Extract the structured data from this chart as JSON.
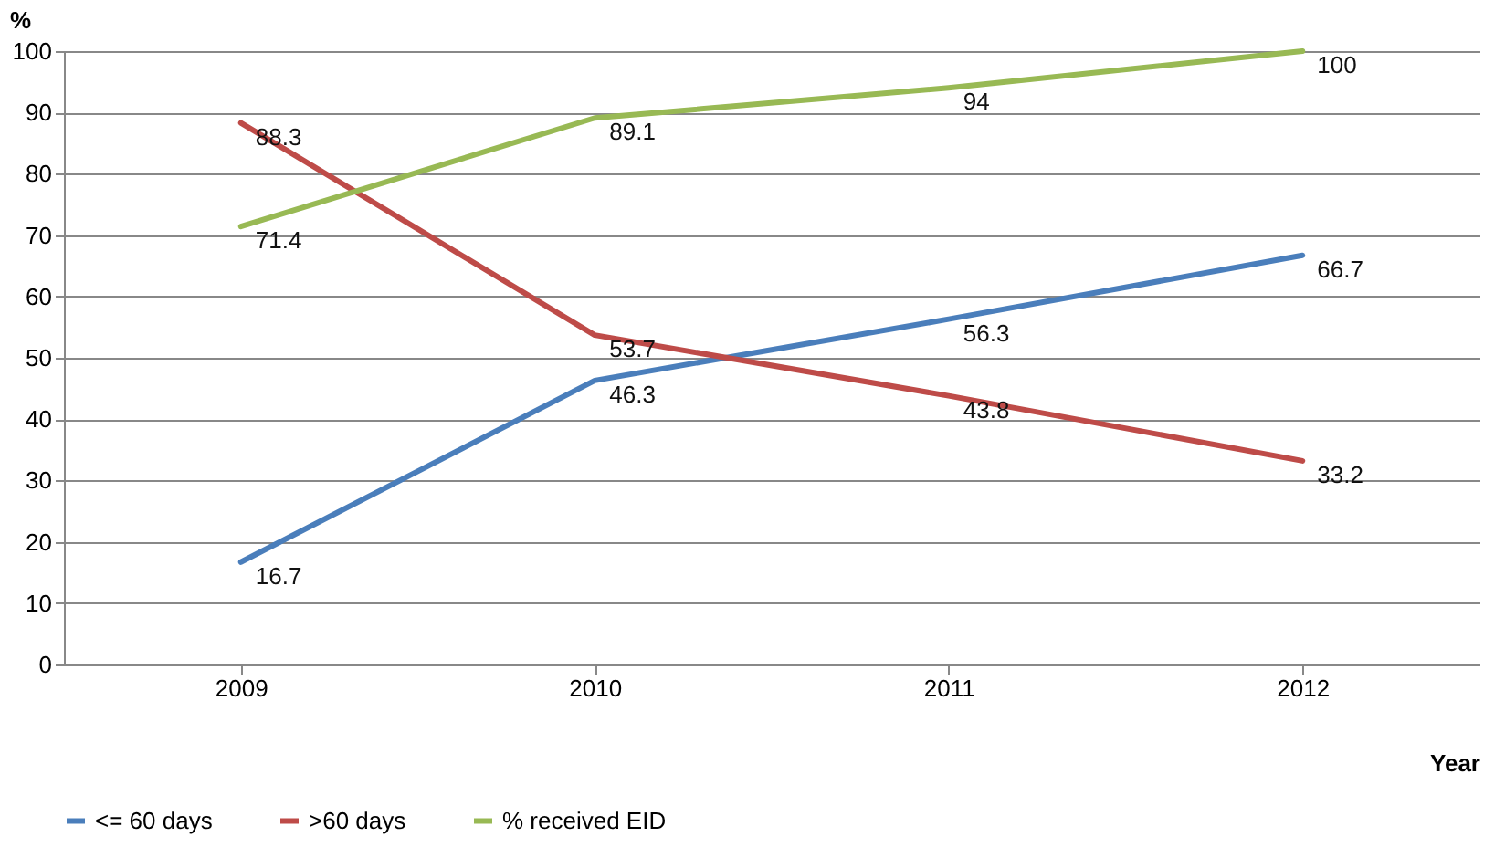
{
  "chart_data": {
    "type": "line",
    "ylabel": "%",
    "xlabel": "Year",
    "categories": [
      "2009",
      "2010",
      "2011",
      "2012"
    ],
    "series": [
      {
        "name": "<= 60 days",
        "color": "#4a7ebb",
        "values": [
          16.7,
          46.3,
          56.3,
          66.7
        ]
      },
      {
        "name": ">60 days",
        "color": "#be4b48",
        "values": [
          88.3,
          53.7,
          43.8,
          33.2
        ]
      },
      {
        "name": "% received EID",
        "color": "#98b954",
        "values": [
          71.4,
          89.1,
          94,
          100
        ]
      }
    ],
    "ylim": [
      0,
      100
    ],
    "yticks": [
      0,
      10,
      20,
      30,
      40,
      50,
      60,
      70,
      80,
      90,
      100
    ],
    "grid": "y",
    "legend": "bottom",
    "data_labels": true,
    "marker": "none",
    "line_style": "solid"
  }
}
